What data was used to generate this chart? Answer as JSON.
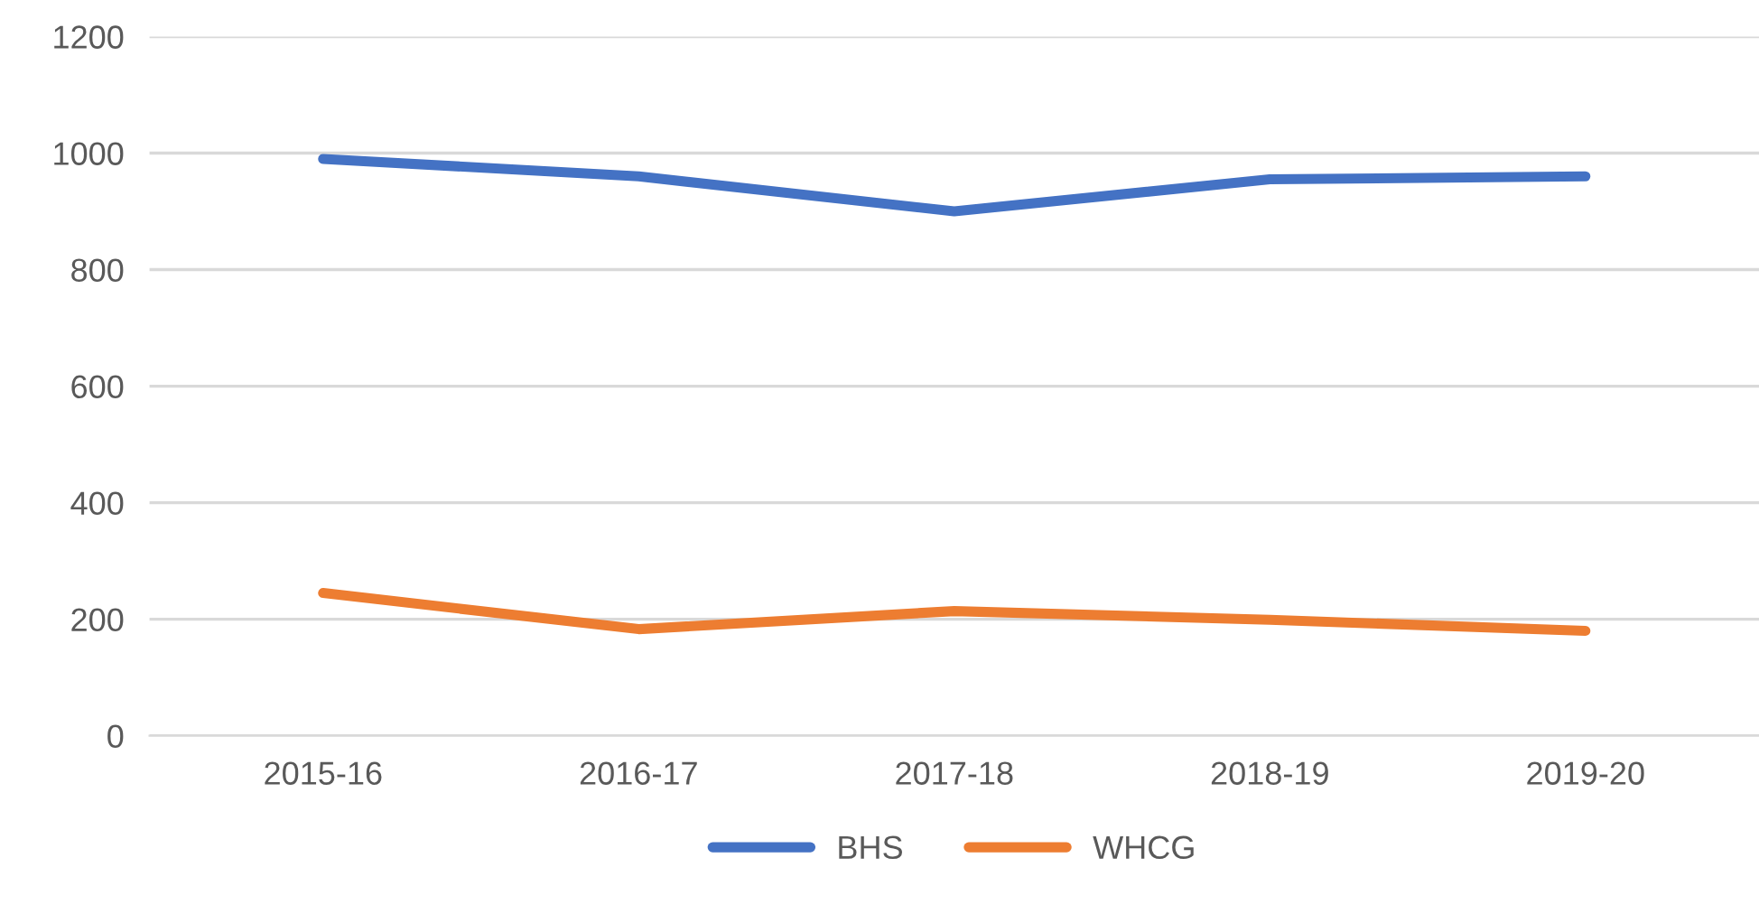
{
  "chart_data": {
    "type": "line",
    "categories": [
      "2015-16",
      "2016-17",
      "2017-18",
      "2018-19",
      "2019-20"
    ],
    "series": [
      {
        "name": "BHS",
        "color": "#4472c4",
        "values": [
          990,
          960,
          900,
          955,
          960
        ]
      },
      {
        "name": "WHCG",
        "color": "#ed7d31",
        "values": [
          245,
          183,
          214,
          199,
          180
        ]
      }
    ],
    "ylim": [
      0,
      1200
    ],
    "yticks": [
      0,
      200,
      400,
      600,
      800,
      1000,
      1200
    ],
    "grid": "y",
    "legend": "bottom",
    "marker": "none",
    "line_style": "solid"
  }
}
